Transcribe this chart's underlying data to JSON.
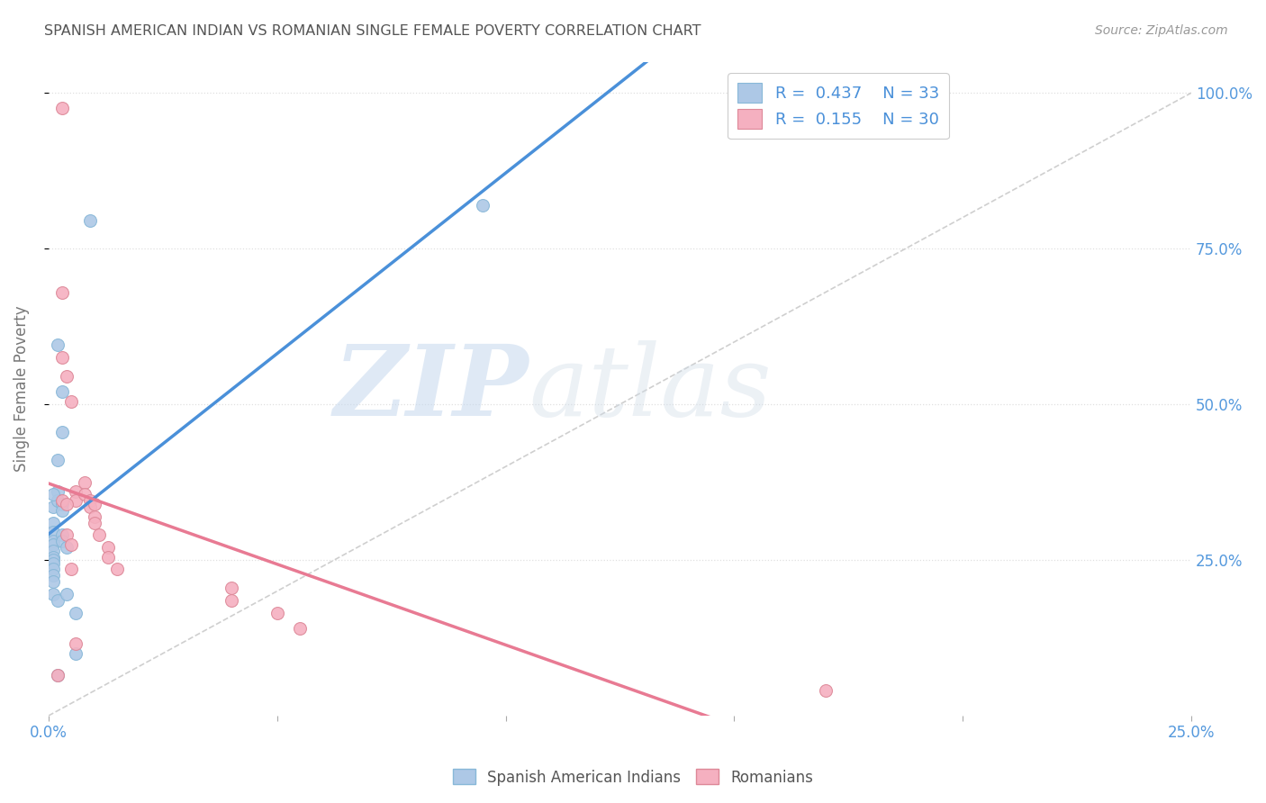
{
  "title": "SPANISH AMERICAN INDIAN VS ROMANIAN SINGLE FEMALE POVERTY CORRELATION CHART",
  "source": "Source: ZipAtlas.com",
  "xlabel": "",
  "ylabel": "Single Female Poverty",
  "watermark_zip": "ZIP",
  "watermark_atlas": "atlas",
  "xlim": [
    0.0,
    0.25
  ],
  "ylim": [
    0.0,
    1.05
  ],
  "xtick_positions": [
    0.0,
    0.05,
    0.1,
    0.15,
    0.2,
    0.25
  ],
  "xtick_labels_shown": [
    "0.0%",
    "",
    "",
    "",
    "",
    "25.0%"
  ],
  "ytick_vals": [
    0.25,
    0.5,
    0.75,
    1.0
  ],
  "ytick_labels": [
    "25.0%",
    "50.0%",
    "75.0%",
    "100.0%"
  ],
  "legend_blue_label": "Spanish American Indians",
  "legend_pink_label": "Romanians",
  "R_blue": 0.437,
  "N_blue": 33,
  "R_pink": 0.155,
  "N_pink": 30,
  "blue_color": "#adc8e6",
  "pink_color": "#f5b0c0",
  "line_blue": "#4a90d9",
  "line_pink": "#e87a93",
  "diag_line_color": "#bbbbbb",
  "grid_color": "#e0e0e0",
  "title_color": "#555555",
  "axis_label_color": "#777777",
  "tick_label_color": "#5599dd",
  "source_color": "#999999",
  "dot_size": 100,
  "blue_x": [
    0.002,
    0.009,
    0.003,
    0.003,
    0.002,
    0.002,
    0.002,
    0.001,
    0.001,
    0.001,
    0.001,
    0.001,
    0.001,
    0.001,
    0.001,
    0.001,
    0.001,
    0.001,
    0.001,
    0.001,
    0.002,
    0.002,
    0.003,
    0.003,
    0.003,
    0.003,
    0.004,
    0.004,
    0.006,
    0.006,
    0.001,
    0.095,
    0.002
  ],
  "blue_y": [
    0.595,
    0.795,
    0.52,
    0.455,
    0.41,
    0.36,
    0.345,
    0.335,
    0.31,
    0.295,
    0.28,
    0.275,
    0.265,
    0.255,
    0.25,
    0.245,
    0.235,
    0.225,
    0.215,
    0.195,
    0.185,
    0.345,
    0.34,
    0.33,
    0.29,
    0.28,
    0.27,
    0.195,
    0.165,
    0.1,
    0.355,
    0.82,
    0.065
  ],
  "pink_x": [
    0.003,
    0.003,
    0.003,
    0.004,
    0.005,
    0.006,
    0.006,
    0.008,
    0.008,
    0.009,
    0.009,
    0.01,
    0.01,
    0.01,
    0.011,
    0.013,
    0.013,
    0.015,
    0.04,
    0.04,
    0.05,
    0.055,
    0.003,
    0.004,
    0.004,
    0.005,
    0.005,
    0.006,
    0.17,
    0.002
  ],
  "pink_y": [
    0.975,
    0.68,
    0.575,
    0.545,
    0.505,
    0.36,
    0.345,
    0.375,
    0.355,
    0.345,
    0.335,
    0.34,
    0.32,
    0.31,
    0.29,
    0.27,
    0.255,
    0.235,
    0.205,
    0.185,
    0.165,
    0.14,
    0.345,
    0.34,
    0.29,
    0.275,
    0.235,
    0.115,
    0.04,
    0.065
  ],
  "diag_line_x": [
    0.0,
    0.25
  ],
  "diag_line_y": [
    0.0,
    1.0
  ]
}
